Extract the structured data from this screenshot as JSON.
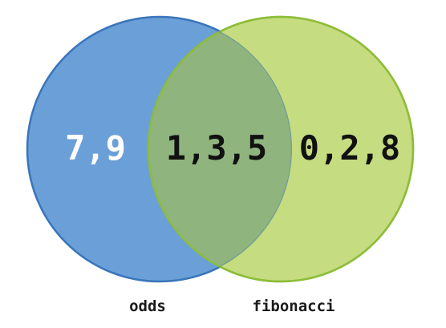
{
  "diagram": {
    "type": "venn",
    "sets": [
      {
        "id": "left",
        "label": "odds",
        "color": "#6b9fd8",
        "stroke": "#3a76bb"
      },
      {
        "id": "right",
        "label": "fibonacci",
        "color": "#c6dc80",
        "stroke": "#8dbd3a"
      }
    ],
    "regions": {
      "left_only": "7,9",
      "intersection": "1,3,5",
      "right_only": "0,2,8"
    },
    "colors": {
      "left_only_text": "#ffffff",
      "intersection_text": "#111111",
      "right_only_text": "#111111",
      "intersection_fill": "#8fb47e"
    }
  }
}
